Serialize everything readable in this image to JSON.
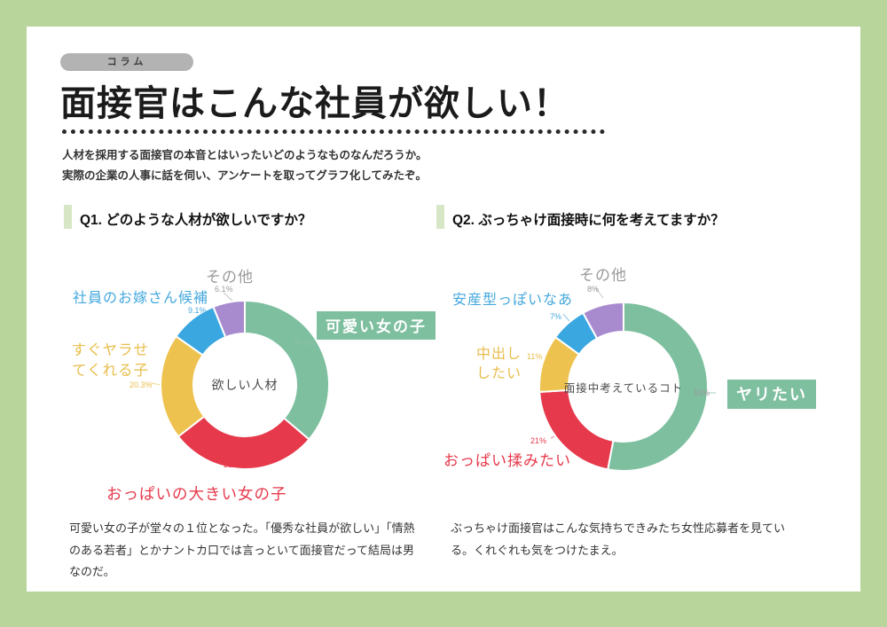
{
  "header": {
    "badge": "コラム",
    "title": "面接官はこんな社員が欲しい！",
    "intro_line1": "人材を採用する面接官の本音とはいったいどのようなものなんだろうか。",
    "intro_line2": "実際の企業の人事に話を伺い、アンケートを取ってグラフ化してみたぞ。"
  },
  "colors": {
    "frame_green": "#b8d69b",
    "heading_bar_green": "#d7e7c6",
    "badge_gray": "#b3b3b3",
    "chart_green": "#7dbf9f",
    "chart_red": "#e6394b",
    "chart_yellow": "#eec24f",
    "chart_blue": "#3aa7e0",
    "chart_purple": "#a88bce",
    "muted_gray": "#9b9b9b"
  },
  "q1": {
    "heading": "Q1. どのような人材が欲しいですか？",
    "note": "可愛い女の子が堂々の１位となった。「優秀な社員が欲しい」「情熱のある若者」とかナントカ口では言っといて面接官だって結局は男なのだ。"
  },
  "q2": {
    "heading": "Q2. ぶっちゃけ面接時に何を考えてますか？",
    "note": "ぶっちゃけ面接官はこんな気持ちできみたち女性応募者を見ている。くれぐれも気をつけたまえ。"
  },
  "chart_data": [
    {
      "type": "pie",
      "variant": "donut",
      "center_label": "欲しい人材",
      "labels": [
        "可愛い女の子",
        "おっぱいの大きい女の子",
        "すぐヤラせてくれる子",
        "社員のお嫁さん候補",
        "その他"
      ],
      "values": [
        36.2,
        28.3,
        20.3,
        9.1,
        6.1
      ],
      "value_labels": [
        "36.2%",
        "28.3%",
        "20.3%",
        "9.1%",
        "6.1%"
      ],
      "colors": [
        "#7dbf9f",
        "#e6394b",
        "#eec24f",
        "#3aa7e0",
        "#a88bce"
      ],
      "start_angle": "top",
      "direction": "clockwise",
      "highlight_label": "可愛い女の子"
    },
    {
      "type": "pie",
      "variant": "donut",
      "center_label": "面接中考えているコト",
      "labels": [
        "ヤリたい",
        "おっぱい揉みたい",
        "中出ししたい",
        "安産型っぽいなあ",
        "その他"
      ],
      "values": [
        53,
        21,
        11,
        7,
        8
      ],
      "value_labels": [
        "53%",
        "21%",
        "11%",
        "7%",
        "8%"
      ],
      "colors": [
        "#7dbf9f",
        "#e6394b",
        "#eec24f",
        "#3aa7e0",
        "#a88bce"
      ],
      "start_angle": "top",
      "direction": "clockwise",
      "highlight_label": "ヤリたい"
    }
  ]
}
